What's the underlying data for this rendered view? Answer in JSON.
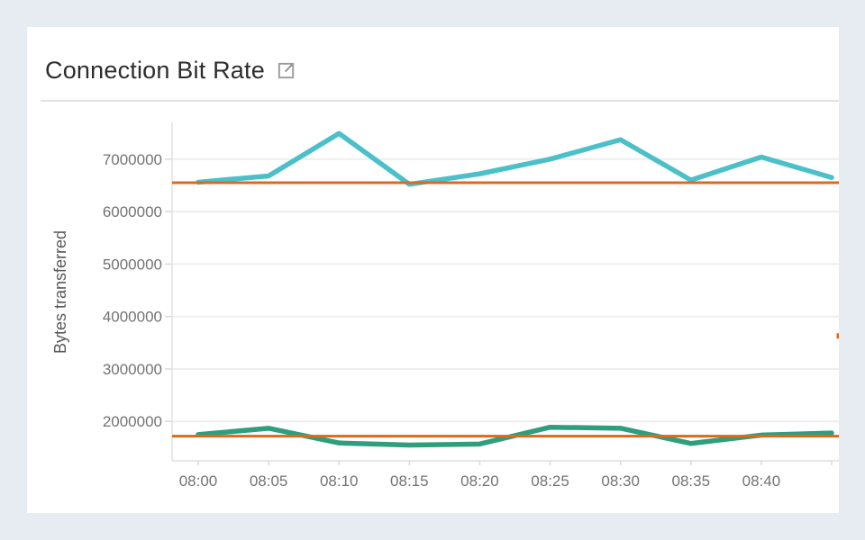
{
  "page": {
    "background_color": "#e7ebf2"
  },
  "panel": {
    "title": "Connection Bit Rate",
    "open_in_new_icon": "open-in-new",
    "icon_color": "#9c9c9c"
  },
  "chart_data": {
    "type": "line",
    "title": "Connection Bit Rate",
    "xlabel": "",
    "ylabel": "Bytes transferred",
    "categories": [
      "08:00",
      "08:05",
      "08:10",
      "08:15",
      "08:20",
      "08:25",
      "08:30",
      "08:35",
      "08:40",
      ""
    ],
    "series": [
      {
        "name": "teal-series",
        "color": "#4bc0c9",
        "values": [
          6560000,
          6680000,
          7490000,
          6520000,
          6720000,
          7000000,
          7370000,
          6600000,
          7040000,
          6650000
        ]
      },
      {
        "name": "green-series",
        "color": "#2f9e7c",
        "values": [
          1750000,
          1870000,
          1590000,
          1550000,
          1570000,
          1890000,
          1870000,
          1580000,
          1740000,
          1780000
        ]
      }
    ],
    "threshold_lines": [
      {
        "value": 6550000,
        "color": "#dc6a1e"
      },
      {
        "value": 1720000,
        "color": "#dc6a1e"
      }
    ],
    "edge_mark": {
      "value": 3630000,
      "color": "#dc6a1e"
    },
    "yticks": [
      2000000,
      3000000,
      4000000,
      5000000,
      6000000,
      7000000
    ],
    "ylim": [
      1250000,
      7700000
    ],
    "grid": "horizontal-only",
    "legend": "none",
    "axis_color": "#e0e0e0",
    "grid_color": "#eeeeee",
    "tick_color": "#d9d9d9",
    "tick_label_color": "#737373"
  }
}
